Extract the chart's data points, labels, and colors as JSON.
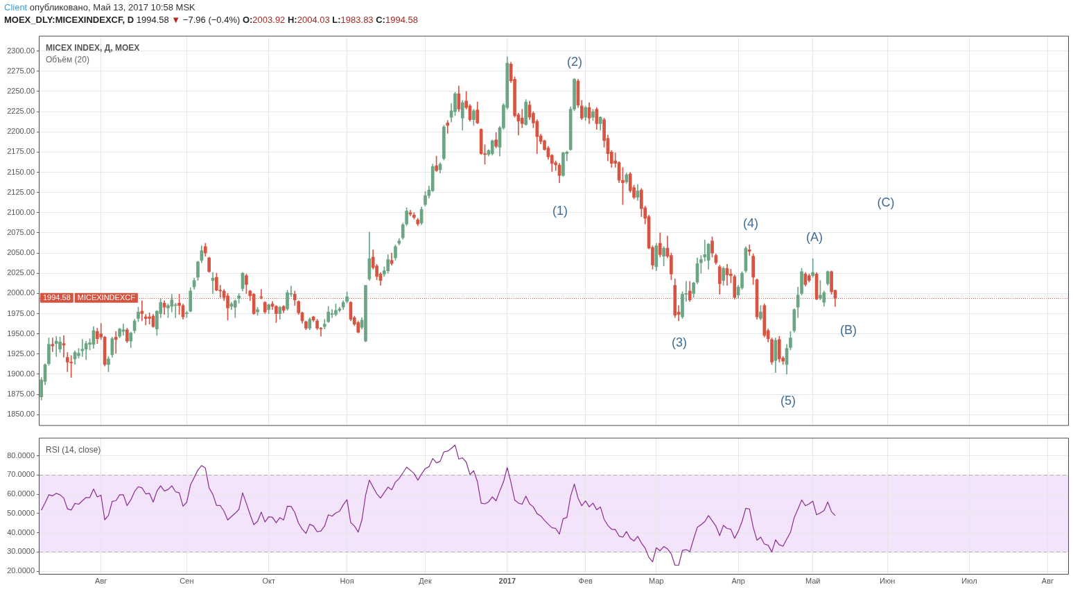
{
  "chart_data": [
    {
      "type": "candlestick",
      "title": "MICEX INDEX, Д, MOEX",
      "subtitle": "Объём (20)",
      "categories": [
        null,
        null,
        null,
        null,
        null,
        null,
        null,
        null,
        null,
        null,
        null,
        null,
        null,
        null,
        null,
        null,
        null,
        null,
        null,
        null,
        null,
        null,
        null,
        null,
        null,
        null,
        null,
        null,
        null,
        null,
        null,
        null,
        null,
        null,
        null,
        null,
        null,
        null,
        null,
        null,
        null,
        null,
        null,
        null,
        null,
        null,
        null,
        null,
        null,
        null,
        null,
        null,
        null,
        null,
        null,
        null,
        null,
        null,
        null,
        null,
        null,
        null,
        null,
        null,
        null,
        null,
        null,
        null,
        null,
        null,
        null,
        null,
        null,
        null,
        null,
        null,
        null,
        null,
        null,
        null,
        null,
        null,
        null,
        null,
        null,
        null,
        null,
        null,
        null,
        null,
        null,
        null,
        null,
        null,
        null,
        null,
        null,
        null,
        null,
        null,
        null,
        null,
        null,
        null,
        null,
        null,
        null,
        null,
        null,
        null,
        null,
        null,
        null,
        null,
        null,
        null,
        null,
        null,
        null,
        null,
        null,
        null,
        null,
        null,
        null,
        null,
        null,
        null,
        null,
        null,
        null,
        null,
        null,
        null,
        null,
        null,
        null,
        null,
        null,
        null,
        null,
        null,
        null,
        null,
        null,
        null,
        null,
        null,
        null,
        null,
        null,
        null,
        null,
        null,
        null,
        null,
        null,
        null,
        null,
        null,
        null,
        null,
        null,
        null,
        null,
        null,
        null,
        null,
        null,
        null,
        null,
        null,
        null,
        null,
        null,
        null,
        null,
        null,
        null,
        null,
        null,
        null,
        null,
        null,
        null,
        null,
        null,
        null,
        null,
        null,
        null,
        null,
        null,
        null,
        null,
        null,
        null,
        null,
        null,
        null,
        null,
        null,
        null,
        null,
        null,
        null,
        null,
        null,
        null,
        null,
        null,
        null,
        null,
        null,
        null,
        null,
        null,
        null,
        null,
        null,
        null,
        null,
        null,
        null,
        null,
        null,
        null,
        null,
        null,
        null,
        null,
        null,
        null,
        null,
        null,
        null,
        null,
        null,
        null,
        null,
        null,
        null,
        null,
        null,
        null,
        null,
        null,
        null,
        null,
        null,
        null,
        null,
        null,
        null,
        null,
        null,
        null,
        null,
        null,
        null,
        null,
        null,
        null,
        null,
        null,
        null,
        null,
        null,
        null,
        null,
        null,
        null,
        null,
        null,
        null,
        null
      ],
      "ohlc": [
        [
          1872,
          1896,
          1868,
          1893
        ],
        [
          1891,
          1913,
          1887,
          1912
        ],
        [
          1913,
          1945,
          1911,
          1937
        ],
        [
          1937,
          1945,
          1928,
          1935
        ],
        [
          1938,
          1947,
          1922,
          1941
        ],
        [
          1931,
          1946,
          1927,
          1940
        ],
        [
          1938,
          1948,
          1921,
          1936
        ],
        [
          1921,
          1927,
          1903,
          1915
        ],
        [
          1915,
          1923,
          1896,
          1914
        ],
        [
          1919,
          1929,
          1912,
          1927
        ],
        [
          1923,
          1932,
          1920,
          1926
        ],
        [
          1929,
          1943,
          1922,
          1931
        ],
        [
          1931,
          1941,
          1918,
          1938
        ],
        [
          1937,
          1944,
          1930,
          1939
        ],
        [
          1937,
          1959,
          1932,
          1954
        ],
        [
          1953,
          1957,
          1938,
          1944
        ],
        [
          1950,
          1963,
          1943,
          1946
        ],
        [
          1946,
          1947,
          1910,
          1912
        ],
        [
          1912,
          1922,
          1903,
          1919
        ],
        [
          1924,
          1946,
          1921,
          1944
        ],
        [
          1946,
          1953,
          1926,
          1943
        ],
        [
          1947,
          1957,
          1945,
          1956
        ],
        [
          1953,
          1962,
          1948,
          1955
        ],
        [
          1955,
          1957,
          1939,
          1941
        ],
        [
          1941,
          1952,
          1933,
          1951
        ],
        [
          1954,
          1968,
          1951,
          1966
        ],
        [
          1969,
          1983,
          1965,
          1977
        ],
        [
          1978,
          1991,
          1966,
          1975
        ],
        [
          1971,
          1974,
          1961,
          1969
        ],
        [
          1971,
          1976,
          1962,
          1969
        ],
        [
          1972,
          1974,
          1958,
          1959
        ],
        [
          1956,
          1979,
          1948,
          1978
        ],
        [
          1975,
          1994,
          1970,
          1989
        ],
        [
          1988,
          1991,
          1974,
          1983
        ],
        [
          1982,
          1987,
          1970,
          1985
        ],
        [
          1984,
          1999,
          1977,
          1992
        ],
        [
          1985,
          1988,
          1970,
          1986
        ],
        [
          1988,
          1999,
          1974,
          1985
        ],
        [
          1985,
          1987,
          1968,
          1971
        ],
        [
          1975,
          1978,
          1970,
          1976
        ],
        [
          1978,
          2007,
          1977,
          2003
        ],
        [
          2008,
          2019,
          2005,
          2016
        ],
        [
          2020,
          2040,
          2016,
          2039
        ],
        [
          2041,
          2059,
          2038,
          2053
        ],
        [
          2058,
          2062,
          2046,
          2050
        ],
        [
          2044,
          2045,
          2026,
          2027
        ],
        [
          2016,
          2026,
          2000,
          2019
        ],
        [
          2020,
          2025,
          2003,
          2004
        ],
        [
          2004,
          2010,
          1995,
          2003
        ],
        [
          2003,
          2005,
          1991,
          1995
        ],
        [
          1997,
          2000,
          1967,
          1982
        ],
        [
          1984,
          1989,
          1980,
          1987
        ],
        [
          1983,
          1992,
          1970,
          1991
        ],
        [
          1994,
          2000,
          1988,
          1997
        ],
        [
          2006,
          2026,
          2003,
          2025
        ],
        [
          2022,
          2024,
          2000,
          2011
        ],
        [
          2003,
          2004,
          1991,
          1997
        ],
        [
          1999,
          2000,
          1974,
          1975
        ],
        [
          1977,
          1983,
          1973,
          1980
        ],
        [
          1996,
          2005,
          1993,
          1995
        ],
        [
          1989,
          1990,
          1975,
          1977
        ],
        [
          1980,
          1987,
          1975,
          1986
        ],
        [
          1987,
          1990,
          1980,
          1984
        ],
        [
          1984,
          1985,
          1964,
          1975
        ],
        [
          1975,
          1984,
          1968,
          1983
        ],
        [
          1984,
          1985,
          1976,
          1979
        ],
        [
          1981,
          2004,
          1979,
          2001
        ],
        [
          1999,
          2009,
          1996,
          2000
        ],
        [
          1999,
          2003,
          1985,
          1992
        ],
        [
          1990,
          1991,
          1974,
          1976
        ],
        [
          1976,
          1977,
          1963,
          1966
        ],
        [
          1965,
          1966,
          1955,
          1957
        ],
        [
          1957,
          1970,
          1955,
          1968
        ],
        [
          1971,
          1972,
          1965,
          1967
        ],
        [
          1966,
          1968,
          1955,
          1957
        ],
        [
          1957,
          1958,
          1947,
          1956
        ],
        [
          1959,
          1968,
          1956,
          1962
        ],
        [
          1965,
          1984,
          1964,
          1977
        ],
        [
          1974,
          1980,
          1970,
          1975
        ],
        [
          1974,
          1987,
          1972,
          1979
        ],
        [
          1979,
          1983,
          1977,
          1981
        ],
        [
          1983,
          1991,
          1980,
          1989
        ],
        [
          1990,
          2002,
          1988,
          1996
        ],
        [
          1989,
          1990,
          1966,
          1968
        ],
        [
          1970,
          1972,
          1960,
          1962
        ],
        [
          1964,
          1966,
          1951,
          1952
        ],
        [
          1958,
          1970,
          1956,
          1967
        ],
        [
          1941,
          2010,
          1940,
          2010
        ],
        [
          2018,
          2076,
          2016,
          2043
        ],
        [
          2045,
          2054,
          2030,
          2032
        ],
        [
          2034,
          2036,
          2017,
          2021
        ],
        [
          2024,
          2026,
          2010,
          2016
        ],
        [
          2024,
          2033,
          2021,
          2028
        ],
        [
          2028,
          2048,
          2025,
          2042
        ],
        [
          2041,
          2050,
          2035,
          2037
        ],
        [
          2044,
          2060,
          2041,
          2058
        ],
        [
          2062,
          2068,
          2060,
          2065
        ],
        [
          2069,
          2087,
          2067,
          2085
        ],
        [
          2086,
          2106,
          2084,
          2102
        ],
        [
          2100,
          2103,
          2096,
          2098
        ],
        [
          2097,
          2100,
          2092,
          2094
        ],
        [
          2091,
          2093,
          2084,
          2086
        ],
        [
          2087,
          2107,
          2085,
          2104
        ],
        [
          2110,
          2126,
          2108,
          2121
        ],
        [
          2121,
          2133,
          2118,
          2128
        ],
        [
          2127,
          2160,
          2126,
          2157
        ],
        [
          2158,
          2170,
          2151,
          2152
        ],
        [
          2153,
          2162,
          2149,
          2160
        ],
        [
          2167,
          2208,
          2165,
          2206
        ],
        [
          2211,
          2214,
          2198,
          2208
        ],
        [
          2218,
          2235,
          2212,
          2226
        ],
        [
          2225,
          2249,
          2220,
          2247
        ],
        [
          2247,
          2257,
          2225,
          2228
        ],
        [
          2217,
          2239,
          2202,
          2236
        ],
        [
          2238,
          2250,
          2228,
          2230
        ],
        [
          2232,
          2234,
          2213,
          2215
        ],
        [
          2215,
          2228,
          2208,
          2226
        ],
        [
          2227,
          2237,
          2210,
          2211
        ],
        [
          2203,
          2204,
          2172,
          2173
        ],
        [
          2173,
          2184,
          2160,
          2172
        ],
        [
          2172,
          2178,
          2170,
          2177
        ],
        [
          2173,
          2190,
          2171,
          2189
        ],
        [
          2190,
          2199,
          2180,
          2182
        ],
        [
          2181,
          2207,
          2170,
          2205
        ],
        [
          2205,
          2235,
          2203,
          2233
        ],
        [
          2230,
          2293,
          2228,
          2285
        ],
        [
          2284,
          2286,
          2261,
          2263
        ],
        [
          2265,
          2268,
          2218,
          2220
        ],
        [
          2221,
          2223,
          2196,
          2213
        ],
        [
          2217,
          2228,
          2205,
          2210
        ],
        [
          2209,
          2240,
          2208,
          2237
        ],
        [
          2233,
          2238,
          2215,
          2218
        ],
        [
          2223,
          2225,
          2205,
          2211
        ],
        [
          2213,
          2215,
          2173,
          2194
        ],
        [
          2195,
          2197,
          2185,
          2188
        ],
        [
          2189,
          2190,
          2177,
          2178
        ],
        [
          2180,
          2182,
          2166,
          2169
        ],
        [
          2171,
          2172,
          2151,
          2161
        ],
        [
          2162,
          2164,
          2152,
          2159
        ],
        [
          2159,
          2161,
          2137,
          2146
        ],
        [
          2146,
          2175,
          2145,
          2174
        ],
        [
          2173,
          2176,
          2164,
          2175
        ],
        [
          2178,
          2231,
          2177,
          2228
        ],
        [
          2228,
          2266,
          2226,
          2265
        ],
        [
          2263,
          2265,
          2230,
          2233
        ],
        [
          2232,
          2239,
          2215,
          2217
        ],
        [
          2218,
          2232,
          2214,
          2230
        ],
        [
          2230,
          2236,
          2210,
          2217
        ],
        [
          2218,
          2228,
          2214,
          2225
        ],
        [
          2228,
          2230,
          2203,
          2210
        ],
        [
          2210,
          2219,
          2202,
          2218
        ],
        [
          2215,
          2217,
          2181,
          2189
        ],
        [
          2192,
          2196,
          2164,
          2173
        ],
        [
          2175,
          2177,
          2156,
          2161
        ],
        [
          2164,
          2174,
          2156,
          2161
        ],
        [
          2162,
          2163,
          2137,
          2140
        ],
        [
          2140,
          2156,
          2110,
          2137
        ],
        [
          2138,
          2149,
          2136,
          2147
        ],
        [
          2148,
          2150,
          2125,
          2127
        ],
        [
          2131,
          2134,
          2117,
          2119
        ],
        [
          2119,
          2135,
          2115,
          2127
        ],
        [
          2128,
          2130,
          2095,
          2105
        ],
        [
          2106,
          2108,
          2086,
          2093
        ],
        [
          2095,
          2097,
          2055,
          2056
        ],
        [
          2057,
          2059,
          2030,
          2035
        ],
        [
          2033,
          2062,
          2028,
          2059
        ],
        [
          2062,
          2075,
          2045,
          2048
        ],
        [
          2046,
          2058,
          2034,
          2056
        ],
        [
          2056,
          2071,
          2044,
          2046
        ],
        [
          2047,
          2050,
          2017,
          2024
        ],
        [
          2010,
          2018,
          1970,
          1973
        ],
        [
          1977,
          1985,
          1966,
          1974
        ],
        [
          1971,
          2002,
          1969,
          1999
        ],
        [
          1999,
          2015,
          1990,
          2000
        ],
        [
          2003,
          2015,
          1990,
          1992
        ],
        [
          2000,
          2014,
          1995,
          2013
        ],
        [
          2014,
          2044,
          2012,
          2037
        ],
        [
          2038,
          2047,
          2025,
          2042
        ],
        [
          2045,
          2066,
          2040,
          2048
        ],
        [
          2041,
          2062,
          2030,
          2061
        ],
        [
          2065,
          2070,
          2045,
          2050
        ],
        [
          2047,
          2049,
          2036,
          2038
        ],
        [
          2033,
          2035,
          1999,
          2012
        ],
        [
          2016,
          2033,
          2010,
          2031
        ],
        [
          2031,
          2036,
          2010,
          2023
        ],
        [
          2024,
          2030,
          2013,
          2022
        ],
        [
          2021,
          2023,
          1993,
          1995
        ],
        [
          1998,
          2010,
          1994,
          2008
        ],
        [
          2007,
          2027,
          2005,
          2025
        ],
        [
          2028,
          2058,
          2026,
          2056
        ],
        [
          2054,
          2060,
          2047,
          2052
        ],
        [
          2046,
          2049,
          2011,
          2020
        ],
        [
          2017,
          2018,
          1968,
          1971
        ],
        [
          1969,
          1985,
          1967,
          1977
        ],
        [
          1985,
          1987,
          1946,
          1948
        ],
        [
          1954,
          1956,
          1940,
          1944
        ],
        [
          1943,
          1945,
          1912,
          1915
        ],
        [
          1917,
          1945,
          1902,
          1942
        ],
        [
          1943,
          1947,
          1915,
          1919
        ],
        [
          1920,
          1922,
          1912,
          1916
        ],
        [
          1912,
          1937,
          1900,
          1932
        ],
        [
          1933,
          1953,
          1930,
          1945
        ],
        [
          1954,
          1981,
          1952,
          1980
        ],
        [
          1983,
          2008,
          1970,
          1998
        ],
        [
          2000,
          2031,
          1998,
          2027
        ],
        [
          2024,
          2026,
          2009,
          2011
        ],
        [
          2022,
          2024,
          2014,
          2016
        ],
        [
          2022,
          2043,
          2020,
          2026
        ],
        [
          2024,
          2026,
          1992,
          1993
        ],
        [
          1994,
          2016,
          1992,
          1998
        ],
        [
          1989,
          2003,
          1984,
          2001
        ],
        [
          2012,
          2028,
          2010,
          2027
        ],
        [
          2027,
          2028,
          1999,
          2002
        ],
        [
          2003.92,
          2004.03,
          1983.83,
          1994.58
        ],
        null,
        null,
        null,
        null,
        null,
        null,
        null,
        null,
        null,
        null,
        null,
        null,
        null,
        null,
        null,
        null,
        null,
        null,
        null,
        null,
        null,
        null,
        null,
        null,
        null,
        null,
        null,
        null,
        null,
        null,
        null,
        null,
        null,
        null,
        null,
        null,
        null,
        null,
        null,
        null,
        null,
        null,
        null,
        null,
        null,
        null,
        null,
        null,
        null,
        null,
        null,
        null,
        null,
        null,
        null,
        null,
        null,
        null,
        null,
        null,
        null,
        null
      ],
      "colors": [
        "#6ba583",
        "#6ba583",
        "#6ba583",
        "#d75442",
        "#6ba583",
        "#6ba583",
        "#d75442",
        "#d75442",
        "#d75442",
        "#6ba583",
        "#6ba583",
        "#6ba583",
        "#6ba583",
        "#6ba583",
        "#6ba583",
        "#d75442",
        "#d75442",
        "#d75442",
        "#6ba583",
        "#6ba583",
        "#d75442",
        "#6ba583",
        "#6ba583",
        "#d75442",
        "#6ba583",
        "#6ba583",
        "#6ba583",
        "#d75442",
        "#d75442",
        "#d75442",
        "#d75442",
        "#6ba583",
        "#6ba583",
        "#d75442",
        "#6ba583",
        "#6ba583",
        "#6ba583",
        "#d75442",
        "#d75442",
        "#6ba583",
        "#6ba583",
        "#6ba583",
        "#6ba583",
        "#6ba583",
        "#d75442",
        "#d75442",
        "#6ba583",
        "#d75442",
        "#d75442",
        "#d75442",
        "#d75442",
        "#6ba583",
        "#6ba583",
        "#6ba583",
        "#6ba583",
        "#d75442",
        "#d75442",
        "#d75442",
        "#6ba583",
        "#d75442",
        "#d75442",
        "#6ba583",
        "#d75442",
        "#d75442",
        "#6ba583",
        "#d75442",
        "#6ba583",
        "#6ba583",
        "#d75442",
        "#d75442",
        "#d75442",
        "#d75442",
        "#6ba583",
        "#d75442",
        "#d75442",
        "#d75442",
        "#6ba583",
        "#6ba583",
        "#6ba583",
        "#6ba583",
        "#6ba583",
        "#6ba583",
        "#6ba583",
        "#d75442",
        "#d75442",
        "#d75442",
        "#6ba583",
        "#6ba583",
        "#6ba583",
        "#d75442",
        "#d75442",
        "#d75442",
        "#6ba583",
        "#6ba583",
        "#d75442",
        "#6ba583",
        "#6ba583",
        "#6ba583",
        "#6ba583",
        "#d75442",
        "#d75442",
        "#d75442",
        "#6ba583",
        "#6ba583",
        "#6ba583",
        "#6ba583",
        "#d75442",
        "#6ba583",
        "#6ba583",
        "#d75442",
        "#6ba583",
        "#6ba583",
        "#d75442",
        "#6ba583",
        "#d75442",
        "#d75442",
        "#6ba583",
        "#d75442",
        "#d75442",
        "#d75442",
        "#6ba583",
        "#6ba583",
        "#d75442",
        "#6ba583",
        "#6ba583",
        "#6ba583",
        "#d75442",
        "#d75442",
        "#d75442",
        "#d75442",
        "#6ba583",
        "#d75442",
        "#d75442",
        "#d75442",
        "#d75442",
        "#d75442",
        "#d75442",
        "#d75442",
        "#d75442",
        "#d75442",
        "#6ba583",
        "#6ba583",
        "#6ba583",
        "#6ba583",
        "#d75442",
        "#d75442",
        "#6ba583",
        "#d75442",
        "#6ba583",
        "#d75442",
        "#6ba583",
        "#d75442",
        "#d75442",
        "#d75442",
        "#d75442",
        "#d75442",
        "#d75442",
        "#6ba583",
        "#d75442",
        "#d75442",
        "#6ba583",
        "#d75442",
        "#d75442",
        "#d75442",
        "#d75442",
        "#6ba583",
        "#d75442",
        "#6ba583",
        "#d75442",
        "#d75442",
        "#d75442",
        "#d75442",
        "#6ba583",
        "#6ba583",
        "#d75442",
        "#6ba583",
        "#6ba583",
        "#6ba583",
        "#6ba583",
        "#6ba583",
        "#d75442",
        "#d75442",
        "#d75442",
        "#6ba583",
        "#d75442",
        "#d75442",
        "#d75442",
        "#6ba583",
        "#6ba583",
        "#6ba583",
        "#d75442",
        "#d75442",
        "#d75442",
        "#6ba583",
        "#d75442",
        "#d75442",
        "#d75442",
        "#6ba583",
        "#d75442",
        "#d75442",
        "#6ba583",
        "#6ba583",
        "#6ba583",
        "#6ba583",
        "#6ba583",
        "#d75442",
        "#d75442",
        "#6ba583",
        "#d75442",
        "#6ba583",
        "#6ba583",
        "#6ba583",
        "#d75442",
        "#d75442",
        null,
        null,
        null,
        null,
        null,
        null,
        null,
        null,
        null,
        null,
        null,
        null,
        null,
        null,
        null,
        null,
        null,
        null,
        null,
        null,
        null,
        null,
        null,
        null,
        null,
        null,
        null,
        null,
        null,
        null,
        null,
        null,
        null,
        null,
        null,
        null,
        null,
        null,
        null,
        null,
        null,
        null,
        null,
        null,
        null,
        null,
        null,
        null,
        null,
        null,
        null,
        null,
        null,
        null,
        null,
        null,
        null,
        null,
        null,
        null,
        null,
        null
      ],
      "ylim": [
        1837,
        2318
      ],
      "yticks": [
        {
          "value": 1850,
          "label": "1850.00"
        },
        {
          "value": 1875,
          "label": "1875.00"
        },
        {
          "value": 1900,
          "label": "1900.00"
        },
        {
          "value": 1925,
          "label": "1925.00"
        },
        {
          "value": 1950,
          "label": "1950.00"
        },
        {
          "value": 1975,
          "label": "1975.00"
        },
        {
          "value": 2000,
          "label": "2000.00"
        },
        {
          "value": 2025,
          "label": "2025.00"
        },
        {
          "value": 2050,
          "label": "2050.00"
        },
        {
          "value": 2075,
          "label": "2075.00"
        },
        {
          "value": 2100,
          "label": "2100.00"
        },
        {
          "value": 2125,
          "label": "2125.00"
        },
        {
          "value": 2150,
          "label": "2150.00"
        },
        {
          "value": 2175,
          "label": "2175.00"
        },
        {
          "value": 2200,
          "label": "2200.00"
        },
        {
          "value": 2225,
          "label": "2225.00"
        },
        {
          "value": 2250,
          "label": "2250.00"
        },
        {
          "value": 2275,
          "label": "2275.00"
        },
        {
          "value": 2300,
          "label": "2300.00"
        }
      ],
      "grid": true,
      "tick_labels": "y",
      "ref_lines": [
        {
          "axis": "y",
          "value": 1994.58,
          "label": "MICEXINDEXCF",
          "color": "#d5533f",
          "line_style": "dotted"
        }
      ],
      "annotations": [
        "Client опубликовано, Май 13, 2017 10:58 MSK",
        "MOEX_DLY:MICEXINDEXCF, D 1994.58 ▼ −7.96 (−0.4%) O:2003.92 H:2004.03 L:1983.83 C:1994.58",
        "(1)",
        "(2)",
        "(3)",
        "(4)",
        "(5)",
        "(A)",
        "(B)",
        "(C)",
        {
          "text": "1994.58",
          "y": 1994.58
        }
      ]
    },
    {
      "type": "line",
      "title": "RSI (14, close)",
      "categories": [
        null,
        null,
        null,
        null,
        null,
        null,
        null,
        null,
        null,
        null,
        null,
        null,
        null,
        null,
        null,
        null,
        "Авг",
        null,
        null,
        null,
        null,
        null,
        null,
        null,
        null,
        null,
        null,
        null,
        null,
        null,
        null,
        null,
        null,
        null,
        null,
        null,
        null,
        null,
        null,
        "Сен",
        null,
        null,
        null,
        null,
        null,
        null,
        null,
        null,
        null,
        null,
        null,
        null,
        null,
        null,
        null,
        null,
        null,
        null,
        null,
        null,
        null,
        "Окт",
        null,
        null,
        null,
        null,
        null,
        null,
        null,
        null,
        null,
        null,
        null,
        null,
        null,
        null,
        null,
        null,
        null,
        null,
        null,
        null,
        "Ноя",
        null,
        null,
        null,
        null,
        null,
        null,
        null,
        null,
        null,
        null,
        null,
        null,
        null,
        null,
        null,
        null,
        null,
        null,
        null,
        null,
        "Дек",
        null,
        null,
        null,
        null,
        null,
        null,
        null,
        null,
        null,
        null,
        null,
        null,
        null,
        null,
        null,
        null,
        null,
        null,
        null,
        null,
        null,
        "2017",
        null,
        null,
        null,
        null,
        null,
        null,
        null,
        null,
        null,
        null,
        null,
        null,
        null,
        null,
        null,
        null,
        null,
        null,
        null,
        null,
        "Фев",
        null,
        null,
        null,
        null,
        null,
        null,
        null,
        null,
        null,
        null,
        null,
        null,
        null,
        null,
        null,
        null,
        null,
        null,
        "Мар",
        null,
        null,
        null,
        null,
        null,
        null,
        null,
        null,
        null,
        null,
        null,
        null,
        null,
        null,
        null,
        null,
        null,
        null,
        null,
        null,
        null,
        "Апр",
        null,
        null,
        null,
        null,
        null,
        null,
        null,
        null,
        null,
        null,
        null,
        null,
        null,
        null,
        null,
        null,
        null,
        null,
        null,
        "Май",
        null,
        null,
        null,
        null,
        null,
        null,
        null,
        null,
        null,
        null,
        null,
        null,
        null,
        null,
        null,
        null,
        null,
        null,
        null,
        "Июн",
        null,
        null,
        null,
        null,
        null,
        null,
        null,
        null,
        null,
        null,
        null,
        null,
        null,
        null,
        null,
        null,
        null,
        null,
        null,
        null,
        null,
        "Июл",
        null,
        null,
        null,
        null,
        null,
        null,
        null,
        null,
        null,
        null,
        null,
        null,
        null,
        null,
        null,
        null,
        null,
        null,
        null,
        null,
        "Авг",
        null,
        null,
        null,
        null,
        null
      ],
      "series": [
        {
          "color": "#8b2a92",
          "values": [
            51.7,
            55.5,
            59.7,
            59.2,
            60.5,
            59.7,
            58.0,
            52.4,
            51.8,
            55.2,
            54.8,
            56.6,
            58.3,
            58.3,
            62.7,
            58.6,
            59.5,
            46.7,
            49.0,
            56.3,
            56.6,
            59.7,
            59.7,
            54.1,
            57.1,
            61.4,
            63.9,
            63.3,
            60.2,
            60.5,
            55.9,
            61.6,
            64.4,
            61.7,
            62.4,
            64.4,
            61.3,
            60.7,
            53.8,
            55.8,
            64.8,
            68.7,
            72.6,
            74.9,
            73.6,
            63.3,
            59.9,
            54.2,
            54.1,
            51.2,
            46.6,
            48.4,
            50.1,
            52.1,
            60.7,
            55.2,
            49.5,
            44.2,
            45.9,
            50.7,
            45.6,
            48.3,
            48.0,
            45.2,
            47.8,
            46.6,
            53.8,
            53.7,
            50.5,
            45.0,
            41.8,
            39.6,
            44.4,
            43.5,
            40.5,
            40.9,
            43.5,
            49.3,
            48.6,
            50.3,
            51.1,
            54.5,
            57.2,
            45.3,
            43.5,
            40.3,
            46.6,
            59.5,
            67.3,
            63.7,
            60.2,
            58.0,
            60.9,
            63.7,
            62.3,
            66.3,
            68.2,
            71.1,
            74.1,
            72.5,
            70.8,
            67.3,
            70.5,
            73.3,
            74.3,
            78.6,
            76.3,
            77.1,
            82.0,
            82.4,
            83.8,
            85.6,
            78.3,
            78.9,
            76.7,
            70.2,
            72.2,
            66.5,
            55.4,
            55.0,
            56.0,
            58.6,
            56.6,
            61.7,
            66.5,
            73.9,
            66.1,
            57.0,
            55.4,
            54.8,
            59.0,
            55.0,
            53.4,
            49.9,
            48.7,
            46.4,
            44.4,
            42.6,
            42.2,
            39.3,
            47.3,
            47.9,
            59.0,
            65.3,
            58.0,
            54.0,
            56.6,
            53.4,
            55.4,
            51.9,
            53.4,
            46.9,
            43.8,
            41.8,
            41.6,
            38.3,
            37.7,
            40.6,
            37.1,
            35.7,
            38.1,
            34.7,
            32.0,
            27.2,
            24.9,
            32.2,
            30.6,
            32.8,
            31.6,
            29.0,
            23.1,
            23.1,
            30.8,
            31.2,
            30.2,
            36.7,
            42.8,
            44.2,
            45.8,
            48.9,
            46.2,
            43.4,
            38.5,
            43.8,
            42.2,
            41.8,
            37.1,
            40.8,
            45.8,
            52.7,
            52.3,
            42.8,
            36.1,
            37.7,
            34.1,
            33.5,
            30.0,
            36.3,
            33.7,
            33.0,
            36.7,
            40.2,
            47.9,
            52.3,
            57.0,
            54.0,
            55.0,
            56.4,
            49.3,
            50.3,
            51.5,
            56.0,
            50.9,
            48.9,
            null,
            null,
            null,
            null,
            null,
            null,
            null,
            null,
            null,
            null,
            null,
            null,
            null,
            null,
            null,
            null,
            null,
            null,
            null,
            null,
            null,
            null,
            null,
            null,
            null,
            null,
            null,
            null,
            null,
            null,
            null,
            null,
            null,
            null,
            null,
            null,
            null,
            null,
            null,
            null,
            null,
            null,
            null,
            null,
            null,
            null,
            null,
            null,
            null,
            null,
            null,
            null,
            null,
            null,
            null,
            null,
            null,
            null,
            null,
            null,
            null,
            null
          ]
        }
      ],
      "ylim": [
        18.6,
        89
      ],
      "yticks": [
        {
          "value": 20,
          "label": "20.0000"
        },
        {
          "value": 30,
          "label": "30.0000"
        },
        {
          "value": 40,
          "label": "40.0000"
        },
        {
          "value": 50,
          "label": "50.0000"
        },
        {
          "value": 60,
          "label": "60.0000"
        },
        {
          "value": 70,
          "label": "70.0000"
        },
        {
          "value": 80,
          "label": "80.0000"
        }
      ],
      "grid": true,
      "marker": "none",
      "bands": [
        {
          "axis": "y",
          "from": 30,
          "to": 70,
          "color": "#f3e4fb"
        }
      ]
    }
  ]
}
